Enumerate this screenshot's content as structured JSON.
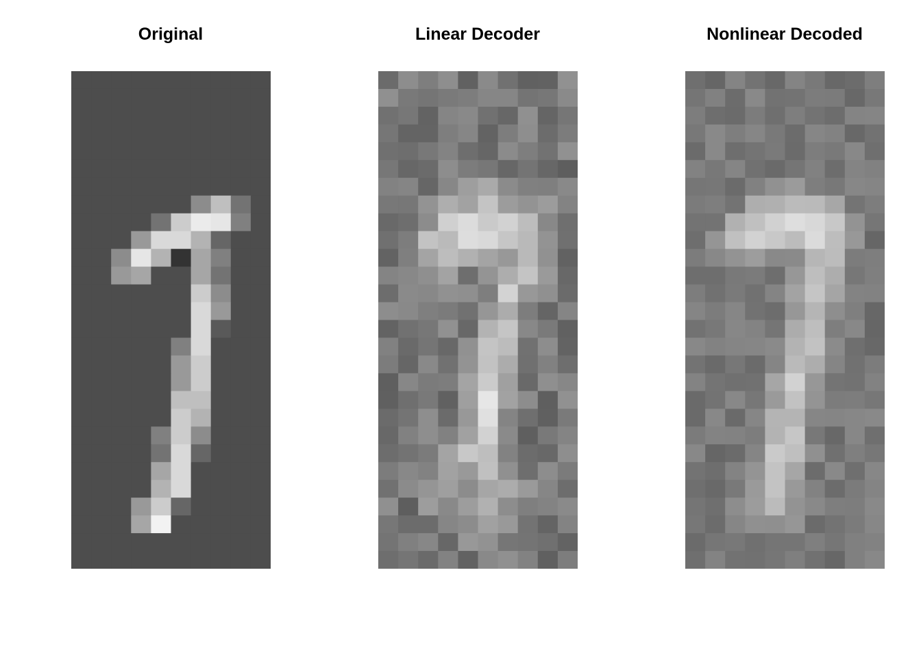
{
  "chart_data": [
    {
      "type": "heatmap",
      "title": "Original",
      "grid": false,
      "colormap": "gray",
      "description_of_values": "28x28 pixel intensities, image cropped to columns 5-14",
      "rows": 28,
      "cols": 10,
      "background": 0.3,
      "values": [
        [
          0,
          0,
          0,
          0,
          0,
          0,
          0,
          0,
          0,
          0
        ],
        [
          0,
          0,
          0,
          0,
          0,
          0,
          0,
          0,
          0,
          0
        ],
        [
          0,
          0,
          0,
          0,
          0,
          0,
          0,
          0,
          0,
          0
        ],
        [
          0,
          0,
          0,
          0,
          0,
          0,
          0,
          0,
          0,
          0
        ],
        [
          0,
          0,
          0,
          0,
          0,
          0,
          0,
          0,
          0,
          0
        ],
        [
          0,
          0,
          0,
          0,
          0,
          0,
          0,
          0,
          0,
          0
        ],
        [
          0,
          0,
          0,
          0,
          0,
          0,
          0,
          0,
          0,
          0
        ],
        [
          0,
          0,
          0,
          0,
          0,
          0,
          0.55,
          0.75,
          0.45,
          0
        ],
        [
          0,
          0,
          0,
          0,
          0.45,
          0.8,
          0.92,
          0.9,
          0.5,
          0
        ],
        [
          0,
          0,
          0,
          0.6,
          0.85,
          0.85,
          0.7,
          0.4,
          0,
          0
        ],
        [
          0,
          0,
          0.55,
          0.9,
          0.7,
          0.2,
          0.65,
          0.5,
          0,
          0
        ],
        [
          0,
          0,
          0.6,
          0.65,
          0,
          0,
          0.65,
          0.45,
          0,
          0
        ],
        [
          0,
          0,
          0,
          0,
          0,
          0,
          0.8,
          0.55,
          0,
          0
        ],
        [
          0,
          0,
          0,
          0,
          0,
          0,
          0.85,
          0.6,
          0,
          0
        ],
        [
          0,
          0,
          0,
          0,
          0,
          0,
          0.85,
          0.35,
          0,
          0
        ],
        [
          0,
          0,
          0,
          0,
          0,
          0.5,
          0.85,
          0.3,
          0,
          0
        ],
        [
          0,
          0,
          0,
          0,
          0,
          0.6,
          0.8,
          0,
          0,
          0
        ],
        [
          0,
          0,
          0,
          0,
          0,
          0.6,
          0.8,
          0,
          0,
          0
        ],
        [
          0,
          0,
          0,
          0,
          0,
          0.75,
          0.75,
          0,
          0,
          0
        ],
        [
          0,
          0,
          0,
          0,
          0,
          0.8,
          0.7,
          0,
          0,
          0
        ],
        [
          0,
          0,
          0,
          0,
          0.5,
          0.8,
          0.55,
          0,
          0,
          0
        ],
        [
          0,
          0,
          0,
          0,
          0.45,
          0.85,
          0.4,
          0,
          0,
          0
        ],
        [
          0,
          0,
          0,
          0,
          0.65,
          0.85,
          0,
          0,
          0,
          0
        ],
        [
          0,
          0,
          0,
          0,
          0.7,
          0.85,
          0,
          0,
          0,
          0
        ],
        [
          0,
          0,
          0,
          0.6,
          0.8,
          0.4,
          0,
          0,
          0,
          0
        ],
        [
          0,
          0,
          0,
          0.65,
          0.95,
          0.3,
          0,
          0,
          0,
          0
        ],
        [
          0,
          0,
          0,
          0,
          0,
          0,
          0,
          0,
          0,
          0
        ],
        [
          0,
          0,
          0,
          0,
          0,
          0,
          0,
          0,
          0,
          0
        ]
      ]
    },
    {
      "type": "heatmap",
      "title": "Linear Decoder",
      "grid": false,
      "colormap": "gray",
      "rows": 28,
      "cols": 10,
      "background": 0.47,
      "noise": 0.1,
      "seed": 7,
      "values": [
        [
          0,
          0,
          0,
          0,
          0,
          0,
          0,
          0,
          0,
          0
        ],
        [
          0,
          0,
          0,
          0,
          0,
          0,
          0,
          0,
          0,
          0
        ],
        [
          0,
          0,
          0,
          0,
          0,
          0,
          0,
          0,
          0,
          0
        ],
        [
          0,
          0,
          0,
          0,
          0,
          0,
          0,
          0,
          0,
          0
        ],
        [
          0,
          0,
          0,
          0,
          0,
          0,
          0,
          0,
          0,
          0
        ],
        [
          0,
          0,
          0,
          0,
          0,
          0,
          0,
          0,
          0,
          0
        ],
        [
          0,
          0,
          0,
          0.05,
          0.1,
          0.12,
          0.1,
          0.05,
          0,
          0
        ],
        [
          0,
          0,
          0.05,
          0.12,
          0.2,
          0.22,
          0.2,
          0.15,
          0.05,
          0
        ],
        [
          0,
          0.05,
          0.12,
          0.28,
          0.34,
          0.38,
          0.35,
          0.22,
          0.08,
          0
        ],
        [
          0,
          0.08,
          0.22,
          0.32,
          0.36,
          0.34,
          0.32,
          0.3,
          0.1,
          0
        ],
        [
          0,
          0.05,
          0.18,
          0.22,
          0.15,
          0.12,
          0.18,
          0.22,
          0.08,
          0
        ],
        [
          0,
          0,
          0.08,
          0.1,
          0.05,
          0.06,
          0.22,
          0.2,
          0.05,
          0
        ],
        [
          0,
          0,
          0,
          0,
          0,
          0.12,
          0.28,
          0.18,
          0,
          0
        ],
        [
          0,
          0,
          0,
          0,
          0,
          0.18,
          0.3,
          0.12,
          0,
          0
        ],
        [
          0,
          0,
          0,
          0,
          0,
          0.22,
          0.3,
          0.08,
          0,
          0
        ],
        [
          0,
          0,
          0,
          0,
          0.05,
          0.25,
          0.28,
          0.05,
          0,
          0
        ],
        [
          0,
          0,
          0,
          0,
          0.08,
          0.3,
          0.25,
          0,
          0,
          0
        ],
        [
          0,
          0,
          0,
          0,
          0.12,
          0.32,
          0.2,
          0,
          0,
          0
        ],
        [
          0,
          0,
          0,
          0,
          0.15,
          0.35,
          0.18,
          0,
          0,
          0
        ],
        [
          0,
          0,
          0,
          0,
          0.2,
          0.32,
          0.12,
          0,
          0,
          0
        ],
        [
          0,
          0,
          0,
          0.05,
          0.25,
          0.28,
          0.08,
          0,
          0,
          0
        ],
        [
          0,
          0,
          0,
          0.1,
          0.22,
          0.25,
          0.12,
          0.05,
          0,
          0
        ],
        [
          0,
          0,
          0,
          0.12,
          0.2,
          0.25,
          0.15,
          0.05,
          0,
          0
        ],
        [
          0,
          0,
          0.05,
          0.14,
          0.18,
          0.2,
          0.14,
          0.05,
          0,
          0
        ],
        [
          0,
          0,
          0.05,
          0.12,
          0.14,
          0.15,
          0.1,
          0,
          0,
          0
        ],
        [
          0,
          0,
          0,
          0.08,
          0.1,
          0.12,
          0.06,
          0,
          0,
          0
        ],
        [
          0,
          0,
          0,
          0,
          0.05,
          0.05,
          0,
          0,
          0,
          0
        ],
        [
          0,
          0,
          0,
          0,
          0,
          0,
          0,
          0,
          0,
          0
        ]
      ]
    },
    {
      "type": "heatmap",
      "title": "Nonlinear Decoded",
      "grid": false,
      "colormap": "gray",
      "rows": 28,
      "cols": 10,
      "background": 0.47,
      "noise": 0.07,
      "seed": 19,
      "values": [
        [
          0,
          0,
          0,
          0,
          0,
          0,
          0,
          0,
          0,
          0
        ],
        [
          0,
          0,
          0,
          0,
          0,
          0,
          0,
          0,
          0,
          0
        ],
        [
          0,
          0,
          0,
          0,
          0,
          0,
          0,
          0,
          0,
          0
        ],
        [
          0,
          0,
          0,
          0,
          0,
          0,
          0,
          0,
          0,
          0
        ],
        [
          0,
          0,
          0,
          0,
          0,
          0,
          0,
          0,
          0,
          0
        ],
        [
          0,
          0,
          0,
          0,
          0,
          0,
          0,
          0,
          0,
          0
        ],
        [
          0,
          0,
          0,
          0.05,
          0.08,
          0.1,
          0.08,
          0.05,
          0,
          0
        ],
        [
          0,
          0,
          0.05,
          0.15,
          0.22,
          0.24,
          0.22,
          0.18,
          0.05,
          0
        ],
        [
          0,
          0.05,
          0.18,
          0.3,
          0.36,
          0.4,
          0.36,
          0.3,
          0.08,
          0
        ],
        [
          0,
          0.08,
          0.25,
          0.32,
          0.34,
          0.33,
          0.32,
          0.3,
          0.1,
          0
        ],
        [
          0,
          0.05,
          0.12,
          0.14,
          0.1,
          0.12,
          0.3,
          0.25,
          0.05,
          0
        ],
        [
          0,
          0,
          0,
          0,
          0,
          0.1,
          0.3,
          0.2,
          0,
          0
        ],
        [
          0,
          0,
          0,
          0,
          0,
          0.14,
          0.3,
          0.15,
          0,
          0
        ],
        [
          0,
          0,
          0,
          0,
          0,
          0.18,
          0.3,
          0.1,
          0,
          0
        ],
        [
          0,
          0,
          0,
          0,
          0,
          0.22,
          0.28,
          0.08,
          0,
          0
        ],
        [
          0,
          0,
          0,
          0,
          0.05,
          0.25,
          0.25,
          0.05,
          0,
          0
        ],
        [
          0,
          0,
          0,
          0,
          0.1,
          0.28,
          0.22,
          0,
          0,
          0
        ],
        [
          0,
          0,
          0,
          0,
          0.12,
          0.3,
          0.18,
          0,
          0,
          0
        ],
        [
          0,
          0,
          0,
          0,
          0.15,
          0.3,
          0.15,
          0,
          0,
          0
        ],
        [
          0,
          0,
          0,
          0,
          0.2,
          0.3,
          0.1,
          0,
          0,
          0
        ],
        [
          0,
          0,
          0,
          0.08,
          0.25,
          0.26,
          0.05,
          0,
          0,
          0
        ],
        [
          0,
          0,
          0,
          0.12,
          0.26,
          0.22,
          0.05,
          0,
          0,
          0
        ],
        [
          0,
          0,
          0,
          0.15,
          0.26,
          0.2,
          0,
          0,
          0,
          0
        ],
        [
          0,
          0,
          0.05,
          0.18,
          0.26,
          0.18,
          0,
          0,
          0,
          0
        ],
        [
          0,
          0,
          0.05,
          0.16,
          0.22,
          0.15,
          0,
          0,
          0,
          0
        ],
        [
          0,
          0,
          0,
          0.1,
          0.15,
          0.1,
          0,
          0,
          0,
          0
        ],
        [
          0,
          0,
          0,
          0,
          0.05,
          0.05,
          0,
          0,
          0,
          0
        ],
        [
          0,
          0,
          0,
          0,
          0,
          0,
          0,
          0,
          0,
          0
        ]
      ]
    }
  ]
}
